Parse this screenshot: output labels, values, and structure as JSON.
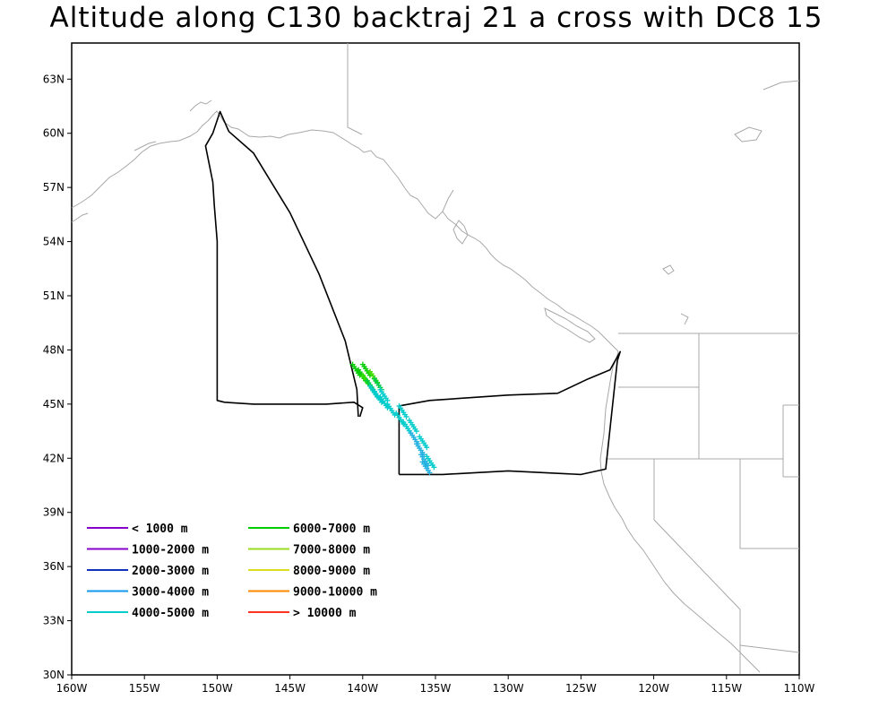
{
  "title": "Altitude along C130 backtraj 21 a cross with DC8 15",
  "map": {
    "lon_range": [
      -160,
      -110
    ],
    "lat_range": [
      30,
      65
    ],
    "x_ticks": [
      {
        "lon": -160,
        "label": "160W"
      },
      {
        "lon": -155,
        "label": "155W"
      },
      {
        "lon": -150,
        "label": "150W"
      },
      {
        "lon": -145,
        "label": "145W"
      },
      {
        "lon": -140,
        "label": "140W"
      },
      {
        "lon": -135,
        "label": "135W"
      },
      {
        "lon": -130,
        "label": "130W"
      },
      {
        "lon": -125,
        "label": "125W"
      },
      {
        "lon": -120,
        "label": "120W"
      },
      {
        "lon": -115,
        "label": "115W"
      },
      {
        "lon": -110,
        "label": "110W"
      }
    ],
    "y_ticks": [
      {
        "lat": 30,
        "label": "30N"
      },
      {
        "lat": 33,
        "label": "33N"
      },
      {
        "lat": 36,
        "label": "36N"
      },
      {
        "lat": 39,
        "label": "39N"
      },
      {
        "lat": 42,
        "label": "42N"
      },
      {
        "lat": 45,
        "label": "45N"
      },
      {
        "lat": 48,
        "label": "48N"
      },
      {
        "lat": 51,
        "label": "51N"
      },
      {
        "lat": 54,
        "label": "54N"
      },
      {
        "lat": 57,
        "label": "57N"
      },
      {
        "lat": 60,
        "label": "60N"
      },
      {
        "lat": 63,
        "label": "63N"
      }
    ],
    "colors": {
      "coastline": "#a8a8a8",
      "flight_track": "#000000"
    },
    "flight_track": [
      [
        -140.2,
        44.3
      ],
      [
        -140.0,
        44.8
      ],
      [
        -140.6,
        45.1
      ],
      [
        -142.5,
        45.0
      ],
      [
        -147.5,
        45.0
      ],
      [
        -149.5,
        45.1
      ],
      [
        -150.0,
        45.2
      ],
      [
        -150.0,
        54.0
      ],
      [
        -150.2,
        56.0
      ],
      [
        -150.3,
        57.3
      ],
      [
        -150.8,
        59.3
      ],
      [
        -150.3,
        60.0
      ],
      [
        -149.8,
        61.2
      ],
      [
        -149.2,
        60.1
      ],
      [
        -147.5,
        58.9
      ],
      [
        -145.0,
        55.6
      ],
      [
        -143.0,
        52.2
      ],
      [
        -141.2,
        48.5
      ],
      [
        -140.4,
        45.8
      ],
      [
        -140.3,
        44.3
      ]
    ],
    "flight_track_2": [
      [
        -137.5,
        41.1
      ],
      [
        -137.5,
        44.9
      ],
      [
        -135.4,
        45.2
      ],
      [
        -130.0,
        45.5
      ],
      [
        -126.6,
        45.6
      ],
      [
        -124.5,
        46.4
      ],
      [
        -123.0,
        46.9
      ],
      [
        -122.3,
        47.9
      ],
      [
        -122.5,
        47.4
      ],
      [
        -123.3,
        41.4
      ],
      [
        -125.0,
        41.1
      ],
      [
        -130.0,
        41.3
      ],
      [
        -134.5,
        41.1
      ],
      [
        -137.5,
        41.1
      ]
    ],
    "trajectory": [
      {
        "lon": -140.2,
        "lat": 46.6,
        "color": "#00cc00"
      },
      {
        "lon": -139.8,
        "lat": 46.3,
        "color": "#00cc00"
      },
      {
        "lon": -139.5,
        "lat": 46.0,
        "color": "#33dd00"
      },
      {
        "lon": -139.2,
        "lat": 45.7,
        "color": "#00cc44"
      },
      {
        "lon": -139.0,
        "lat": 45.4,
        "color": "#00cccc"
      },
      {
        "lon": -138.7,
        "lat": 45.1,
        "color": "#00cccc"
      },
      {
        "lon": -138.3,
        "lat": 44.8,
        "color": "#00cccc"
      },
      {
        "lon": -137.8,
        "lat": 44.4,
        "color": "#00cccc"
      },
      {
        "lon": -137.2,
        "lat": 43.9,
        "color": "#00cccc"
      },
      {
        "lon": -136.7,
        "lat": 43.4,
        "color": "#00cccc"
      },
      {
        "lon": -136.2,
        "lat": 42.8,
        "color": "#22b0e0"
      },
      {
        "lon": -135.8,
        "lat": 42.2,
        "color": "#22b0e0"
      },
      {
        "lon": -135.5,
        "lat": 41.6,
        "color": "#22b0e0"
      },
      {
        "lon": -135.4,
        "lat": 41.2,
        "color": "#22b0e0"
      },
      {
        "lon": -139.5,
        "lat": 46.6,
        "color": "#00cc00"
      },
      {
        "lon": -139.0,
        "lat": 46.2,
        "color": "#44dd00"
      },
      {
        "lon": -138.7,
        "lat": 45.8,
        "color": "#00cc44"
      },
      {
        "lon": -138.3,
        "lat": 45.2,
        "color": "#00cccc"
      },
      {
        "lon": -137.0,
        "lat": 44.3,
        "color": "#00cccc"
      },
      {
        "lon": -136.3,
        "lat": 43.5,
        "color": "#00cccc"
      },
      {
        "lon": -135.6,
        "lat": 42.6,
        "color": "#00cccc"
      },
      {
        "lon": -135.1,
        "lat": 41.5,
        "color": "#00cccc"
      }
    ]
  },
  "legend": [
    {
      "label": "< 1000 m",
      "color": "#8800cc"
    },
    {
      "label": "1000-2000 m",
      "color": "#8800cc"
    },
    {
      "label": "2000-3000 m",
      "color": "#1133bb"
    },
    {
      "label": "3000-4000 m",
      "color": "#1199ee"
    },
    {
      "label": "4000-5000 m",
      "color": "#00cccc"
    },
    {
      "label": "6000-7000 m",
      "color": "#00cc00"
    },
    {
      "label": "7000-8000 m",
      "color": "#99dd22"
    },
    {
      "label": "8000-9000 m",
      "color": "#dddd22"
    },
    {
      "label": "9000-10000 m",
      "color": "#ff8800"
    },
    {
      "label": "> 10000 m",
      "color": "#ff3322"
    }
  ]
}
